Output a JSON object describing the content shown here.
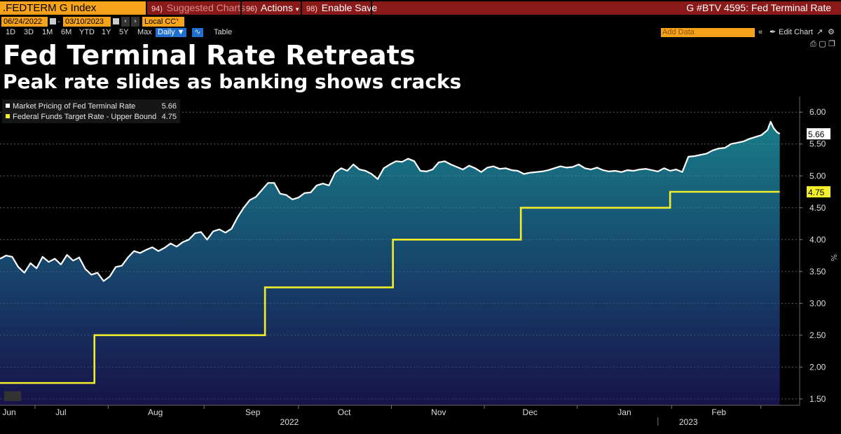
{
  "toolbar": {
    "ticker": ".FEDTERM G Index",
    "suggested": "Suggested Charts",
    "suggested_num": "94)",
    "actions": "Actions",
    "actions_num": "96)",
    "enable_save": "Enable Save",
    "enable_save_num": "98)",
    "chart_id": "G #BTV 4595: Fed Terminal Rate"
  },
  "dates": {
    "start": "06/24/2022",
    "end": "03/10/2023",
    "currency": "Local CCY"
  },
  "periods": [
    "1D",
    "3D",
    "1M",
    "6M",
    "YTD",
    "1Y",
    "5Y",
    "Max"
  ],
  "frequency": "Daily ▼",
  "table_label": "Table",
  "add_data_placeholder": "Add Data",
  "edit_chart": "Edit Chart",
  "title": "Fed Terminal Rate Retreats",
  "subtitle": "Peak rate slides as banking shows cracks",
  "colors": {
    "accent": "#f7a21b",
    "terminal_line": "#ffffff",
    "target_line": "#f2ee2b",
    "area_top": "#187d88",
    "area_bottom": "#17134a"
  },
  "chart_data": {
    "type": "area",
    "title": "Fed Terminal Rate Retreats",
    "ylim": [
      1.4,
      6.2
    ],
    "y_ticks": [
      "1.50",
      "2.00",
      "2.50",
      "3.00",
      "3.50",
      "4.00",
      "4.50",
      "5.00",
      "5.50",
      "6.00"
    ],
    "y_unit_label": "%",
    "x_domain": [
      0,
      260
    ],
    "x_months": [
      {
        "label": "Jun",
        "x": 3
      },
      {
        "label": "Jul",
        "x": 20
      },
      {
        "label": "Aug",
        "x": 51
      },
      {
        "label": "Sep",
        "x": 83
      },
      {
        "label": "Oct",
        "x": 113
      },
      {
        "label": "Nov",
        "x": 144
      },
      {
        "label": "Dec",
        "x": 174
      },
      {
        "label": "Jan",
        "x": 205
      },
      {
        "label": "Feb",
        "x": 236
      }
    ],
    "x_years": [
      {
        "label": "2022",
        "x": 95
      },
      {
        "label": "2023",
        "x": 226
      }
    ],
    "legend": [
      {
        "name": "Market Pricing of Fed Terminal Rate",
        "value": "5.66"
      },
      {
        "name": "Federal Funds Target Rate - Upper Bound",
        "value": "4.75"
      }
    ],
    "series": [
      {
        "name": "Market Pricing of Fed Terminal Rate",
        "last_label": "5.66",
        "points": [
          [
            0,
            3.7
          ],
          [
            2,
            3.75
          ],
          [
            4,
            3.73
          ],
          [
            6,
            3.57
          ],
          [
            8,
            3.48
          ],
          [
            10,
            3.63
          ],
          [
            12,
            3.55
          ],
          [
            14,
            3.73
          ],
          [
            16,
            3.65
          ],
          [
            18,
            3.7
          ],
          [
            20,
            3.61
          ],
          [
            22,
            3.76
          ],
          [
            24,
            3.67
          ],
          [
            26,
            3.72
          ],
          [
            28,
            3.54
          ],
          [
            30,
            3.45
          ],
          [
            32,
            3.48
          ],
          [
            34,
            3.35
          ],
          [
            36,
            3.42
          ],
          [
            38,
            3.57
          ],
          [
            40,
            3.59
          ],
          [
            42,
            3.72
          ],
          [
            44,
            3.82
          ],
          [
            46,
            3.79
          ],
          [
            48,
            3.84
          ],
          [
            50,
            3.88
          ],
          [
            52,
            3.82
          ],
          [
            54,
            3.87
          ],
          [
            56,
            3.94
          ],
          [
            58,
            3.89
          ],
          [
            60,
            3.96
          ],
          [
            62,
            4.0
          ],
          [
            64,
            4.1
          ],
          [
            66,
            4.12
          ],
          [
            68,
            4.0
          ],
          [
            70,
            4.13
          ],
          [
            72,
            4.16
          ],
          [
            74,
            4.11
          ],
          [
            76,
            4.17
          ],
          [
            78,
            4.35
          ],
          [
            80,
            4.5
          ],
          [
            82,
            4.62
          ],
          [
            84,
            4.67
          ],
          [
            86,
            4.78
          ],
          [
            88,
            4.89
          ],
          [
            90,
            4.89
          ],
          [
            92,
            4.72
          ],
          [
            94,
            4.7
          ],
          [
            96,
            4.63
          ],
          [
            98,
            4.66
          ],
          [
            100,
            4.73
          ],
          [
            102,
            4.74
          ],
          [
            104,
            4.85
          ],
          [
            106,
            4.88
          ],
          [
            108,
            4.85
          ],
          [
            110,
            5.05
          ],
          [
            112,
            5.12
          ],
          [
            114,
            5.08
          ],
          [
            116,
            5.18
          ],
          [
            118,
            5.1
          ],
          [
            120,
            5.08
          ],
          [
            122,
            5.03
          ],
          [
            124,
            4.95
          ],
          [
            126,
            5.12
          ],
          [
            128,
            5.18
          ],
          [
            130,
            5.23
          ],
          [
            132,
            5.22
          ],
          [
            134,
            5.27
          ],
          [
            136,
            5.23
          ],
          [
            138,
            5.08
          ],
          [
            140,
            5.07
          ],
          [
            142,
            5.1
          ],
          [
            144,
            5.21
          ],
          [
            146,
            5.23
          ],
          [
            148,
            5.18
          ],
          [
            150,
            5.14
          ],
          [
            152,
            5.1
          ],
          [
            154,
            5.16
          ],
          [
            156,
            5.12
          ],
          [
            158,
            5.06
          ],
          [
            160,
            5.13
          ],
          [
            162,
            5.15
          ],
          [
            164,
            5.11
          ],
          [
            166,
            5.12
          ],
          [
            168,
            5.09
          ],
          [
            170,
            5.08
          ],
          [
            172,
            5.03
          ],
          [
            174,
            5.05
          ],
          [
            176,
            5.06
          ],
          [
            178,
            5.07
          ],
          [
            180,
            5.09
          ],
          [
            182,
            5.12
          ],
          [
            184,
            5.15
          ],
          [
            186,
            5.13
          ],
          [
            188,
            5.14
          ],
          [
            190,
            5.18
          ],
          [
            192,
            5.12
          ],
          [
            194,
            5.1
          ],
          [
            196,
            5.13
          ],
          [
            198,
            5.09
          ],
          [
            200,
            5.07
          ],
          [
            202,
            5.08
          ],
          [
            204,
            5.06
          ],
          [
            206,
            5.09
          ],
          [
            208,
            5.08
          ],
          [
            210,
            5.1
          ],
          [
            212,
            5.11
          ],
          [
            214,
            5.09
          ],
          [
            216,
            5.07
          ],
          [
            218,
            5.12
          ],
          [
            220,
            5.08
          ],
          [
            222,
            5.1
          ],
          [
            224,
            5.06
          ],
          [
            226,
            5.3
          ],
          [
            228,
            5.31
          ],
          [
            230,
            5.33
          ],
          [
            232,
            5.35
          ],
          [
            234,
            5.4
          ],
          [
            236,
            5.43
          ],
          [
            238,
            5.44
          ],
          [
            240,
            5.5
          ],
          [
            242,
            5.52
          ],
          [
            244,
            5.54
          ],
          [
            246,
            5.58
          ],
          [
            248,
            5.61
          ],
          [
            250,
            5.64
          ],
          [
            252,
            5.72
          ],
          [
            253,
            5.85
          ],
          [
            254,
            5.75
          ],
          [
            255,
            5.69
          ],
          [
            256,
            5.66
          ]
        ]
      },
      {
        "name": "Federal Funds Target Rate - Upper Bound",
        "last_label": "4.75",
        "steps": [
          [
            0,
            1.75
          ],
          [
            31,
            2.5
          ],
          [
            87,
            3.25
          ],
          [
            129,
            4.0
          ],
          [
            171,
            4.5
          ],
          [
            220,
            4.75
          ],
          [
            256,
            4.75
          ]
        ]
      }
    ]
  }
}
